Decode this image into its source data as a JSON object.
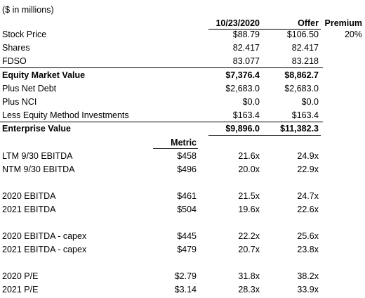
{
  "units_note": "($ in millions)",
  "headers": {
    "date": "10/23/2020",
    "offer": "Offer",
    "premium": "Premium",
    "metric": "Metric"
  },
  "top_rows": [
    {
      "label": "Stock Price",
      "date": "$88.79",
      "offer": "$106.50",
      "premium": "20%"
    },
    {
      "label": "Shares",
      "date": "82.417",
      "offer": "82.417"
    },
    {
      "label": "FDSO",
      "date": "83.077",
      "offer": "83.218"
    },
    {
      "label": "Equity Market Value",
      "date": "$7,376.4",
      "offer": "$8,862.7"
    },
    {
      "label": "Plus Net Debt",
      "date": "$2,683.0",
      "offer": "$2,683.0"
    },
    {
      "label": "Plus NCI",
      "date": "$0.0",
      "offer": "$0.0"
    },
    {
      "label": "Less Equity Method Investments",
      "date": "$163.4",
      "offer": "$163.4"
    },
    {
      "label": "Enterprise Value",
      "date": "$9,896.0",
      "offer": "$11,382.3"
    }
  ],
  "multiple_rows": [
    {
      "label": "LTM 9/30 EBITDA",
      "metric": "$458",
      "date": "21.6x",
      "offer": "24.9x"
    },
    {
      "label": "NTM 9/30 EBITDA",
      "metric": "$496",
      "date": "20.0x",
      "offer": "22.9x"
    },
    {
      "label": "2020 EBITDA",
      "metric": "$461",
      "date": "21.5x",
      "offer": "24.7x"
    },
    {
      "label": "2021 EBITDA",
      "metric": "$504",
      "date": "19.6x",
      "offer": "22.6x"
    },
    {
      "label": "2020 EBITDA - capex",
      "metric": "$445",
      "date": "22.2x",
      "offer": "25.6x"
    },
    {
      "label": "2021 EBITDA - capex",
      "metric": "$479",
      "date": "20.7x",
      "offer": "23.8x"
    },
    {
      "label": "2020 P/E",
      "metric": "$2.79",
      "date": "31.8x",
      "offer": "38.2x"
    },
    {
      "label": "2021 P/E",
      "metric": "$3.14",
      "date": "28.3x",
      "offer": "33.9x"
    }
  ]
}
